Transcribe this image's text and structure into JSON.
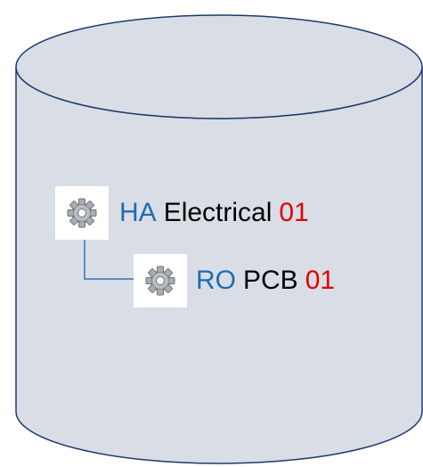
{
  "colors": {
    "cylinder_fill": "#d9dee6",
    "cylinder_stroke": "#1f3a6e",
    "connector": "#5b8ec4",
    "prefix_blue": "#1f6bb5",
    "name_black": "#000000",
    "number_red": "#e00000"
  },
  "tree": {
    "parent": {
      "icon": "gear-icon",
      "prefix": "HA",
      "name": "Electrical",
      "number": "01"
    },
    "child": {
      "icon": "gear-icon",
      "prefix": "RO",
      "name": "PCB",
      "number": "01"
    }
  }
}
